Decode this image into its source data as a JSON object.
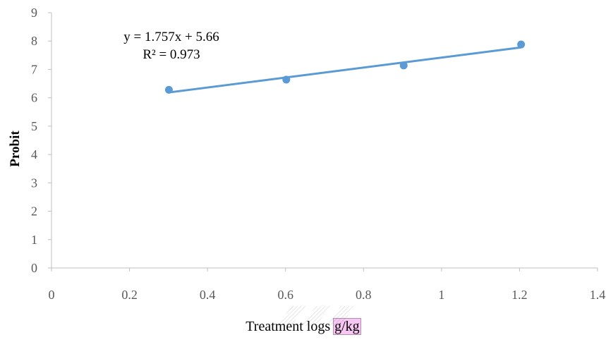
{
  "chart_data": {
    "type": "scatter",
    "title": "",
    "xlabel": "Treatment logs",
    "xlabel_unit": "g/kg",
    "ylabel": "Probit",
    "xlim": [
      0,
      1.4
    ],
    "ylim": [
      0,
      9
    ],
    "x_ticks": [
      "0",
      "0.2",
      "0.4",
      "0.6",
      "0.8",
      "1",
      "1.2",
      "1.4"
    ],
    "y_ticks": [
      "0",
      "1",
      "2",
      "3",
      "4",
      "5",
      "6",
      "7",
      "8",
      "9"
    ],
    "grid": false,
    "series": [
      {
        "x": [
          0.301,
          0.602,
          0.903,
          1.204
        ],
        "y": [
          6.28,
          6.64,
          7.14,
          7.88
        ]
      }
    ],
    "trendline": {
      "type": "linear",
      "slope": 1.757,
      "intercept": 5.66,
      "equation": "y = 1.757x + 5.66",
      "r_squared": "R² = 0.973"
    },
    "colors": {
      "marker": "#5b9bd5",
      "trendline": "#5b9bd5",
      "axis": "#bfbfbf",
      "highlight": "#f7c6f3"
    }
  }
}
